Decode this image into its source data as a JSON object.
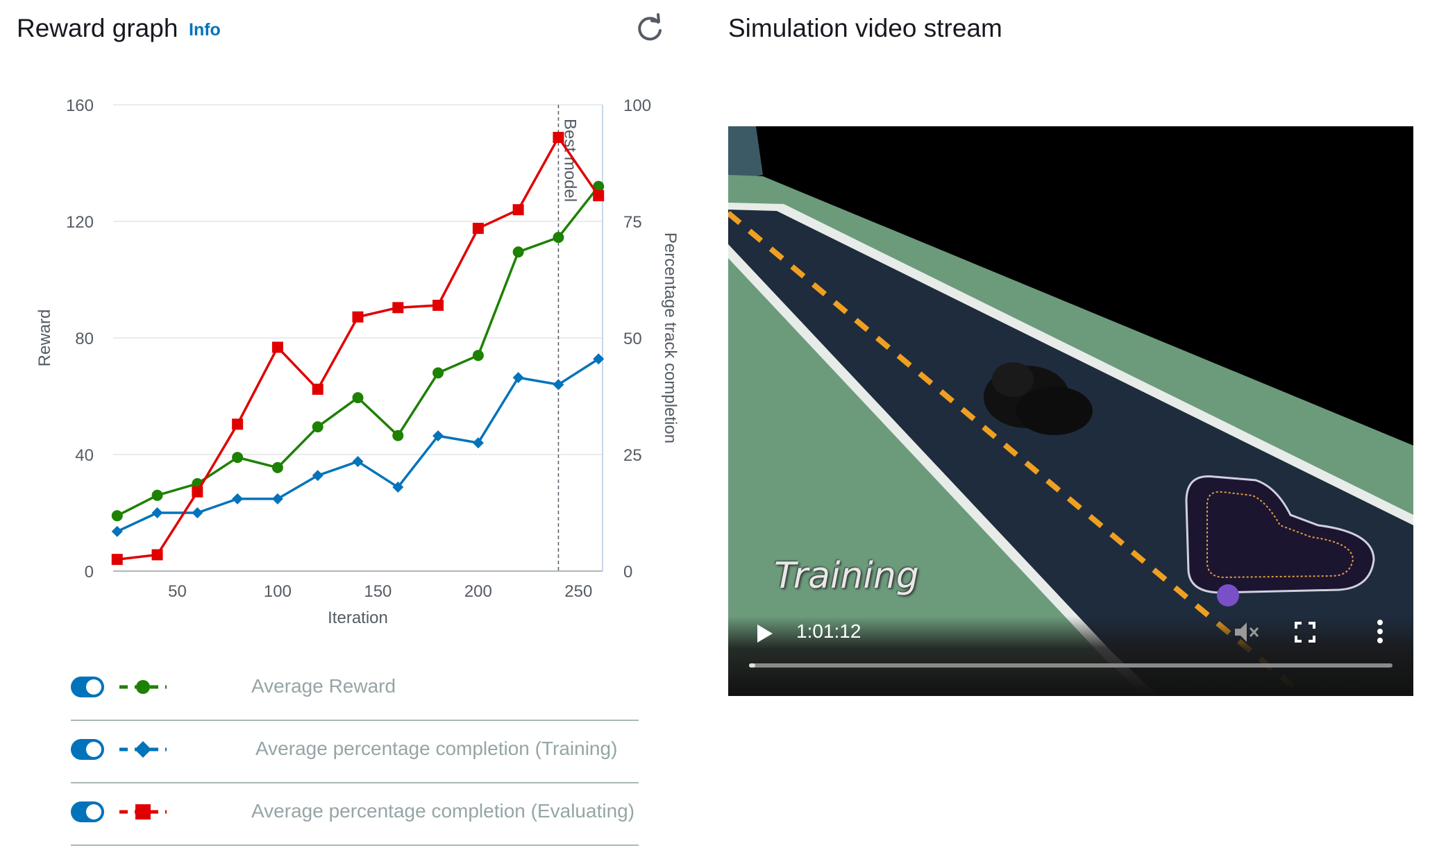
{
  "header": {
    "title": "Reward graph",
    "info_label": "Info",
    "video_title": "Simulation video stream"
  },
  "icons": {
    "refresh": "refresh-icon",
    "play": "play-icon",
    "mute": "volume-muted-icon",
    "fullscreen": "fullscreen-icon",
    "menu": "more-vertical-icon"
  },
  "chart_data": {
    "type": "line",
    "xlabel": "Iteration",
    "ylabel": "Reward",
    "y2label": "Percentage track completion",
    "xlim": [
      18,
      262
    ],
    "ylim": [
      0,
      160
    ],
    "y2lim": [
      0,
      100
    ],
    "x_ticks": [
      50,
      100,
      150,
      200,
      250
    ],
    "y_ticks": [
      0,
      40,
      80,
      120,
      160
    ],
    "y2_ticks": [
      0,
      25,
      50,
      75,
      100
    ],
    "grid": true,
    "annotation": {
      "label": "Best model",
      "x": 240
    },
    "x": [
      20,
      40,
      60,
      80,
      100,
      120,
      140,
      160,
      180,
      200,
      220,
      240,
      260
    ],
    "series": [
      {
        "name": "Average Reward",
        "axis": "left",
        "marker": "circle",
        "color": "#1d8102",
        "values": [
          19,
          26,
          30,
          39,
          35.5,
          49.5,
          59.5,
          46.5,
          68,
          74,
          109.5,
          114.5,
          132
        ]
      },
      {
        "name": "Average percentage completion (Training)",
        "axis": "right",
        "marker": "diamond",
        "color": "#0073bb",
        "values": [
          8.5,
          12.5,
          12.5,
          15.5,
          15.5,
          20.5,
          23.5,
          18,
          29,
          27.5,
          41.5,
          40,
          45.5
        ]
      },
      {
        "name": "Average percentage completion (Evaluating)",
        "axis": "right",
        "marker": "square",
        "color": "#e00000",
        "values": [
          2.5,
          3.5,
          17,
          31.5,
          48,
          39,
          54.5,
          56.5,
          57,
          73.5,
          77.5,
          93,
          80.5
        ]
      }
    ]
  },
  "legend": [
    {
      "label": "Average Reward",
      "enabled": true
    },
    {
      "label": "Average percentage completion (Training)",
      "enabled": true
    },
    {
      "label": "Average percentage completion (Evaluating)",
      "enabled": true
    }
  ],
  "video": {
    "overlay_text": "Training",
    "time": "1:01:12",
    "progress": 0.01
  }
}
